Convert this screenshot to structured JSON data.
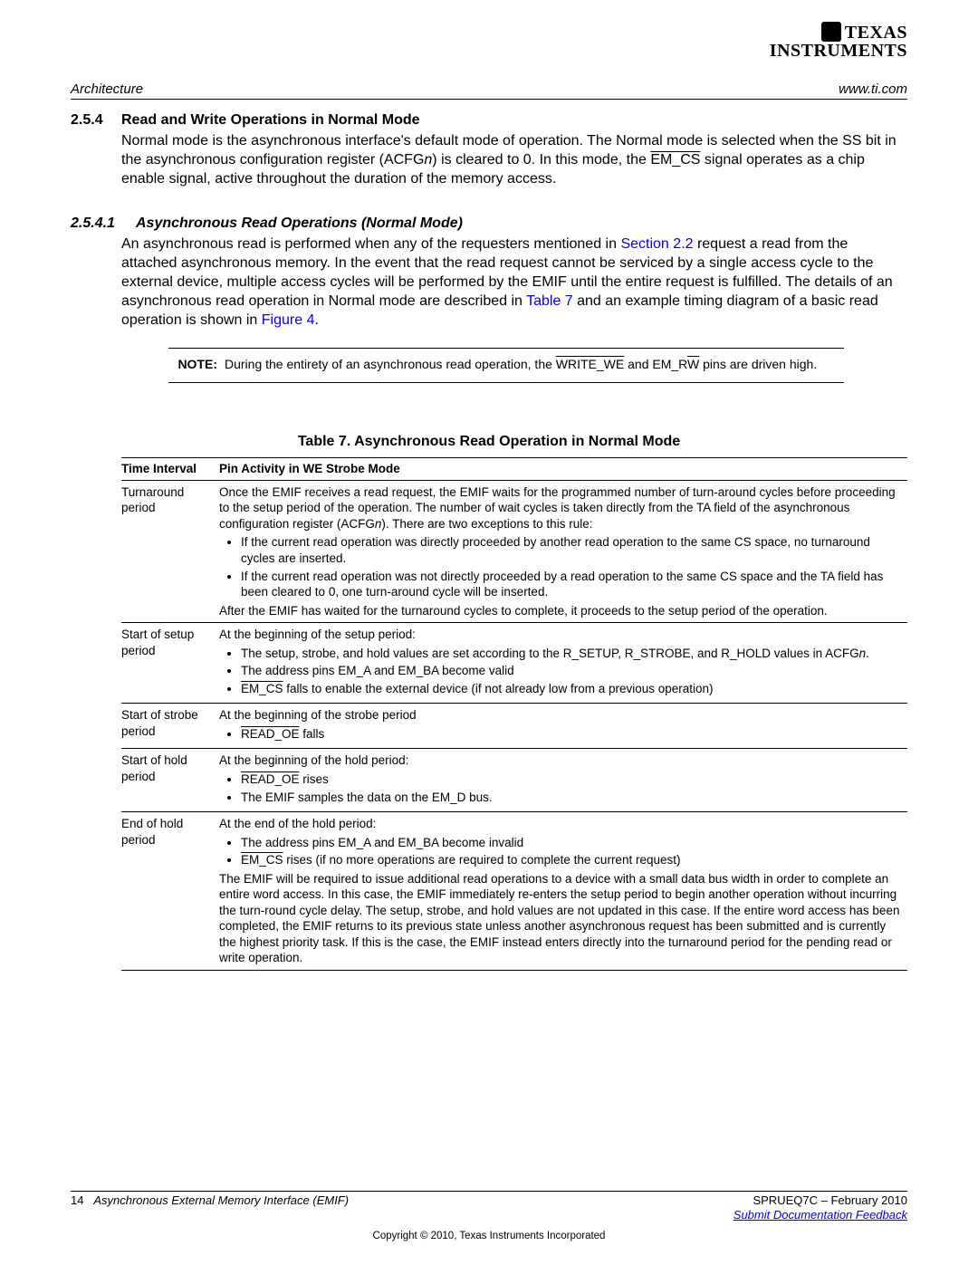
{
  "logo": {
    "line1": "TEXAS",
    "line2": "INSTRUMENTS"
  },
  "header": {
    "left": "Architecture",
    "right": "www.ti.com"
  },
  "section": {
    "num": "2.5.4",
    "title": "Read and Write Operations in Normal Mode",
    "body_pre": "Normal mode is the asynchronous interface's default mode of operation. The Normal mode is selected when the SS bit in the asynchronous configuration register (ACFG",
    "body_ital": "n",
    "body_post1": ") is cleared to 0. In this mode, the ",
    "body_sig": "EM_CS",
    "body_post2": " signal operates as a chip enable signal, active throughout the duration of the memory access."
  },
  "subsection": {
    "num": "2.5.4.1",
    "title": "Asynchronous Read Operations (Normal Mode)",
    "p1a": "An asynchronous read is performed when any of the requesters mentioned in ",
    "p1link1": "Section 2.2",
    "p1b": " request a read from the attached asynchronous memory. In the event that the read request cannot be serviced by a single access cycle to the external device, multiple access cycles will be performed by the EMIF until the entire request is fulfilled. The details of an asynchronous read operation in Normal mode are described in ",
    "p1link2": "Table 7",
    "p1c": " and an example timing diagram of a basic read operation is shown in ",
    "p1link3": "Figure 4",
    "p1d": "."
  },
  "note": {
    "label": "NOTE:",
    "t1": "During the entirety of an asynchronous read operation, the ",
    "sig1": "WRITE_WE",
    "t2": " and EM_R",
    "sig2": "W",
    "t3": " pins are driven high."
  },
  "table": {
    "caption": "Table 7. Asynchronous Read Operation in Normal Mode",
    "h1": "Time Interval",
    "h2": "Pin Activity in WE Strobe Mode",
    "rows": [
      {
        "interval": "Turnaround period",
        "intro1": "Once the EMIF receives a read request, the EMIF waits for the programmed number of turn-around cycles before proceeding to the setup period of the operation. The number of wait cycles is taken directly from the TA field of the asynchronous configuration register (ACFG",
        "intro_ital": "n",
        "intro2": "). There are two exceptions to this rule:",
        "b1": "If the current read operation was directly proceeded by another read operation to the same CS space, no turnaround cycles are inserted.",
        "b2": "If the current read operation was not directly proceeded by a read operation to the same CS space and the TA field has been cleared to 0, one turn-around cycle will be inserted.",
        "outro": "After the EMIF has waited for the turnaround cycles to complete, it proceeds to the setup period of the operation."
      },
      {
        "interval": "Start of setup period",
        "intro": "At the beginning of the setup period:",
        "b1a": "The setup, strobe, and hold values are set according to the R_SETUP, R_STROBE, and R_HOLD values in ACFG",
        "b1ital": "n",
        "b1b": ".",
        "b2": "The address pins EM_A and EM_BA become valid",
        "b3sig": "EM_CS",
        "b3t": " falls to enable the external device (if not already low from a previous operation)"
      },
      {
        "interval": "Start of strobe period",
        "intro": "At the beginning of the strobe period",
        "b1sig": "READ_OE",
        "b1t": " falls"
      },
      {
        "interval": "Start of hold period",
        "intro": "At the beginning of the hold period:",
        "b1sig": "READ_OE",
        "b1t": " rises",
        "b2": "The EMIF samples the data on the EM_D bus."
      },
      {
        "interval": "End of hold period",
        "intro": "At the end of the hold period:",
        "b1": "The address pins EM_A and EM_BA become invalid",
        "b2sig": "EM_CS",
        "b2t": " rises (if no more operations are required to complete the current request)",
        "outro": "The EMIF will be required to issue additional read operations to a device with a small data bus width in order to complete an entire word access. In this case, the EMIF immediately re-enters the setup period to begin another operation without incurring the turn-round cycle delay. The setup, strobe, and hold values are not updated in this case. If the entire word access has been completed, the EMIF returns to its previous state unless another asynchronous request has been submitted and is currently the highest priority task. If this is the case, the EMIF instead enters directly into the turnaround period for the pending read or write operation."
      }
    ]
  },
  "footer": {
    "page": "14",
    "doc_title": "Asynchronous External Memory Interface (EMIF)",
    "doc_id": "SPRUEQ7C – February 2010",
    "feedback": "Submit Documentation Feedback",
    "copyright": "Copyright © 2010, Texas Instruments Incorporated"
  }
}
